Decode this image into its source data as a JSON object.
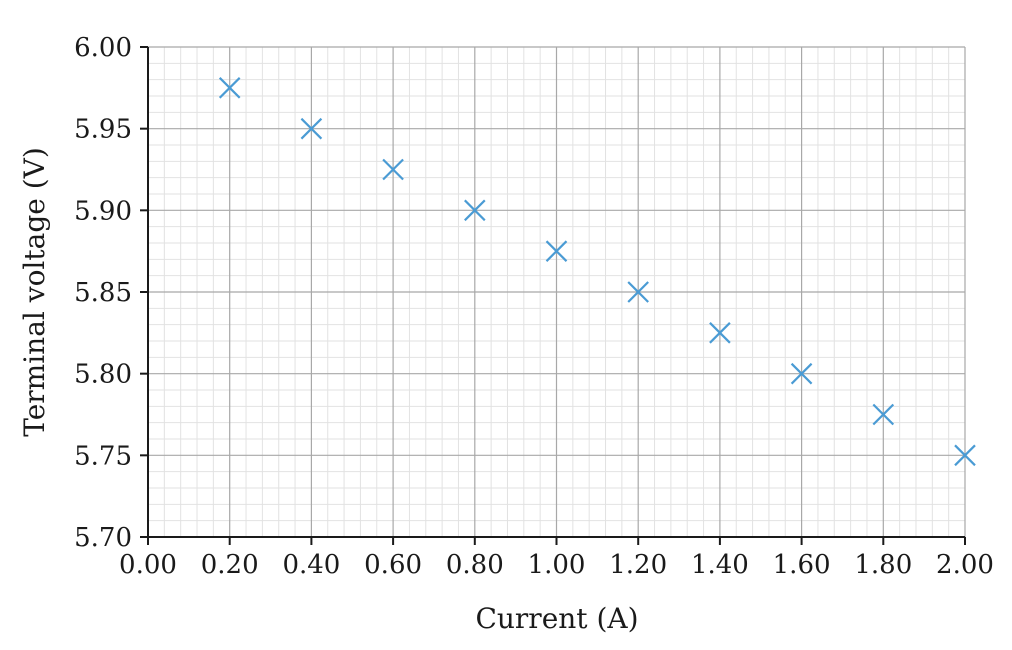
{
  "chart_data": {
    "type": "scatter",
    "title": "",
    "xlabel": "Current (A)",
    "ylabel": "Terminal voltage (V)",
    "xlim": [
      0.0,
      2.0
    ],
    "ylim": [
      5.7,
      6.0
    ],
    "x_ticks": [
      "0.00",
      "0.20",
      "0.40",
      "0.60",
      "0.80",
      "1.00",
      "1.20",
      "1.40",
      "1.60",
      "1.80",
      "2.00"
    ],
    "y_ticks": [
      "5.70",
      "5.75",
      "5.80",
      "5.85",
      "5.90",
      "5.95",
      "6.00"
    ],
    "grid": true,
    "minor_grid": true,
    "marker": "x",
    "marker_color": "#4a9bd4",
    "series": [
      {
        "x": [
          0.2,
          0.4,
          0.6,
          0.8,
          1.0,
          1.2,
          1.4,
          1.6,
          1.8,
          2.0
        ],
        "y": [
          5.975,
          5.95,
          5.925,
          5.9,
          5.875,
          5.85,
          5.825,
          5.8,
          5.775,
          5.75
        ]
      }
    ]
  }
}
